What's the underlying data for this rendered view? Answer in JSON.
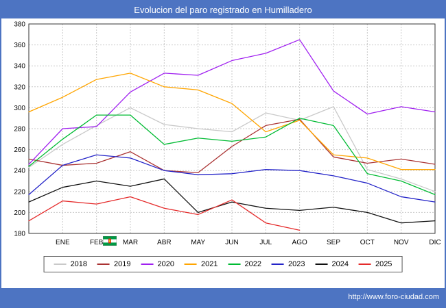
{
  "title": "Evolucion del paro registrado en Humilladero",
  "footer": {
    "url": "http://www.foro-ciudad.com"
  },
  "ui": {
    "frame_blue": "#4d74c2",
    "grid_color": "#c9c9c9",
    "plot_border": "#333333",
    "text_color": "#000000"
  },
  "chart_data": {
    "type": "line",
    "title": "Evolucion del paro registrado en Humilladero",
    "xlabel": "",
    "ylabel": "",
    "ylim": [
      180,
      380
    ],
    "y_ticks": [
      180,
      200,
      220,
      240,
      260,
      280,
      300,
      320,
      340,
      360,
      380
    ],
    "grid": true,
    "legend_position": "bottom",
    "months": [
      "ENE",
      "FEB",
      "MAR",
      "ABR",
      "MAY",
      "JUN",
      "JUL",
      "AGO",
      "SEP",
      "OCT",
      "NOV",
      "DIC"
    ],
    "x_note": "first value of each series is the previous December (left edge), followed by ENE..DIC",
    "series": [
      {
        "name": "2018",
        "color": "#c9c9c9",
        "values": [
          243,
          265,
          283,
          300,
          284,
          280,
          277,
          295,
          288,
          301,
          241,
          232,
          220
        ]
      },
      {
        "name": "2019",
        "color": "#aa3333",
        "values": [
          251,
          245,
          247,
          258,
          240,
          238,
          263,
          283,
          289,
          253,
          247,
          251,
          246
        ]
      },
      {
        "name": "2020",
        "color": "#a020f0",
        "values": [
          246,
          280,
          282,
          315,
          333,
          331,
          345,
          352,
          365,
          316,
          294,
          301,
          296
        ]
      },
      {
        "name": "2021",
        "color": "#ffa500",
        "values": [
          296,
          310,
          327,
          333,
          320,
          317,
          304,
          277,
          288,
          255,
          252,
          241,
          241
        ]
      },
      {
        "name": "2022",
        "color": "#00bb33",
        "values": [
          244,
          270,
          293,
          293,
          265,
          271,
          268,
          272,
          290,
          283,
          237,
          230,
          217
        ]
      },
      {
        "name": "2023",
        "color": "#2424c8",
        "values": [
          217,
          245,
          255,
          252,
          240,
          236,
          237,
          241,
          240,
          235,
          228,
          215,
          210
        ]
      },
      {
        "name": "2024",
        "color": "#111111",
        "values": [
          210,
          224,
          230,
          225,
          232,
          200,
          210,
          204,
          202,
          205,
          200,
          190,
          192
        ]
      },
      {
        "name": "2025",
        "color": "#e52b2b",
        "values": [
          192,
          211,
          208,
          215,
          204,
          198,
          212,
          190,
          183
        ]
      }
    ]
  }
}
